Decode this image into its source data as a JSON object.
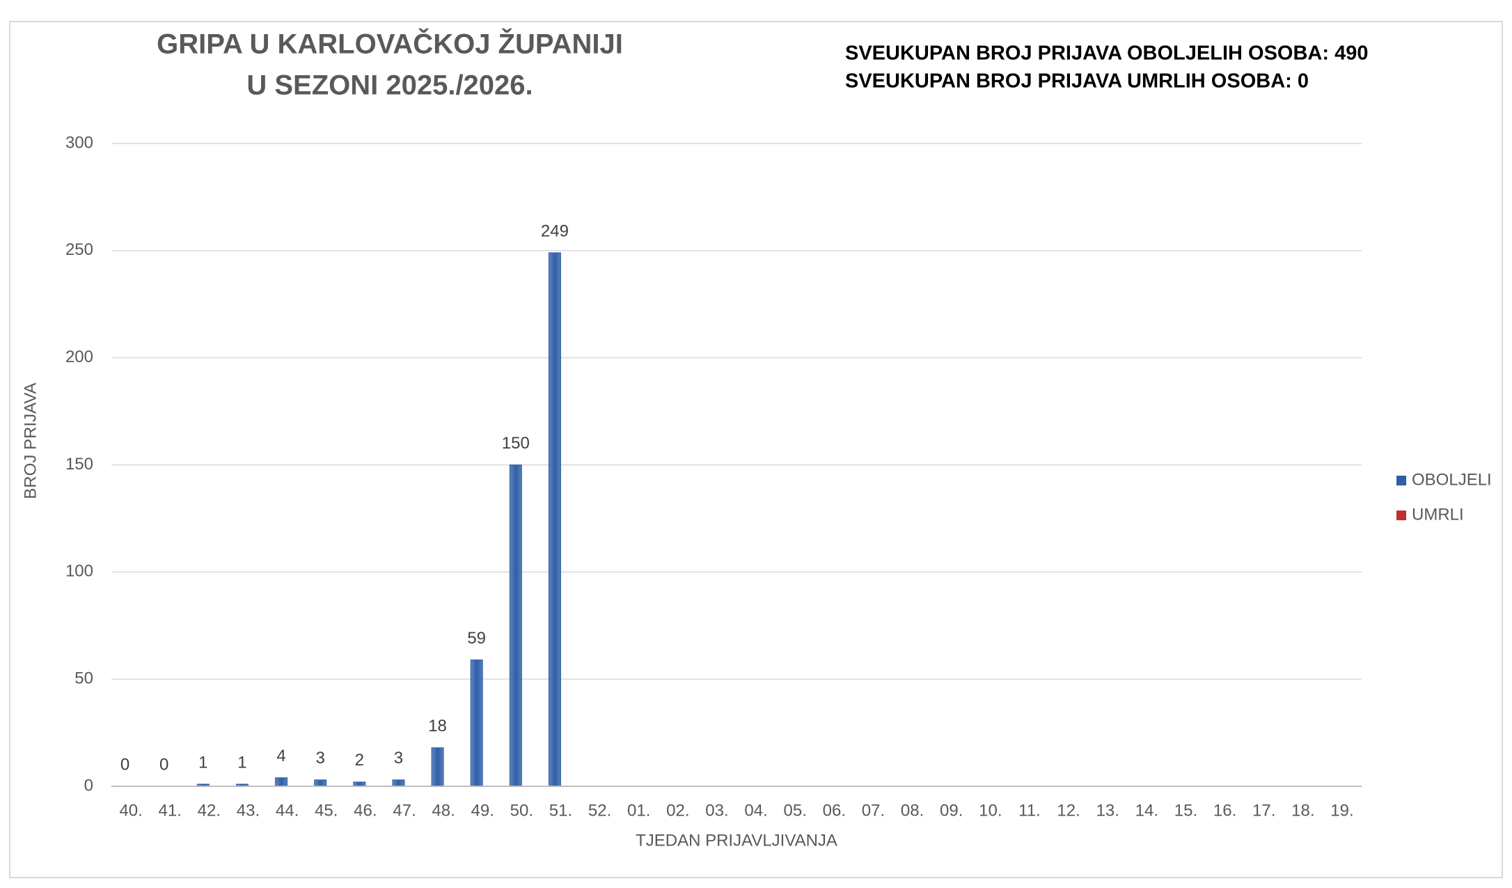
{
  "chart_data": {
    "type": "bar",
    "title": [
      "GRIPA U KARLOVAČKOJ ŽUPANIJI",
      "U SEZONI 2025./2026."
    ],
    "annotations": [
      "SVEUKUPAN BROJ PRIJAVA OBOLJELIH OSOBA: 490",
      "SVEUKUPAN BROJ PRIJAVA UMRLIH OSOBA: 0"
    ],
    "x_label": "TJEDAN PRIJAVLJIVANJA",
    "y_label": "BROJ PRIJAVA",
    "categories": [
      "40.",
      "41.",
      "42.",
      "43.",
      "44.",
      "45.",
      "46.",
      "47.",
      "48.",
      "49.",
      "50.",
      "51.",
      "52.",
      "01.",
      "02.",
      "03.",
      "04.",
      "05.",
      "06.",
      "07.",
      "08.",
      "09.",
      "10.",
      "11.",
      "12.",
      "13.",
      "14.",
      "15.",
      "16.",
      "17.",
      "18.",
      "19."
    ],
    "series": [
      {
        "name": "OBOLJELI",
        "color": "#2e5fa8",
        "values": [
          0,
          0,
          1,
          1,
          4,
          3,
          2,
          3,
          18,
          59,
          150,
          249,
          null,
          null,
          null,
          null,
          null,
          null,
          null,
          null,
          null,
          null,
          null,
          null,
          null,
          null,
          null,
          null,
          null,
          null,
          null,
          null
        ]
      },
      {
        "name": "UMRLI",
        "color": "#c0302f",
        "values": [
          0,
          0,
          0,
          0,
          0,
          0,
          0,
          0,
          0,
          0,
          0,
          0,
          null,
          null,
          null,
          null,
          null,
          null,
          null,
          null,
          null,
          null,
          null,
          null,
          null,
          null,
          null,
          null,
          null,
          null,
          null,
          null
        ]
      }
    ],
    "ylim": [
      0,
      300
    ],
    "yticks": [
      0,
      50,
      100,
      150,
      200,
      250,
      300
    ],
    "grid": true,
    "legend": "right"
  }
}
